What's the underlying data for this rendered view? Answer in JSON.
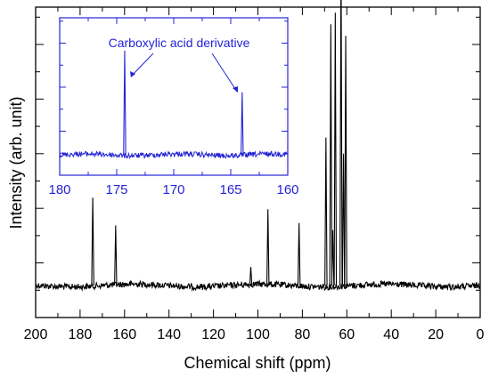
{
  "chart_data": [
    {
      "type": "line",
      "xlabel": "Chemical shift (ppm)",
      "ylabel": "Intensity (arb. unit)",
      "xlim": [
        200,
        0
      ],
      "x_reversed": true,
      "x_ticks": [
        200,
        180,
        160,
        140,
        120,
        100,
        80,
        60,
        40,
        20,
        0
      ],
      "tick_labels": [
        "200",
        "180",
        "160",
        "140",
        "120",
        "100",
        "80",
        "60",
        "40",
        "20",
        "0"
      ],
      "y_tick_labels": false,
      "baseline_intensity": 0,
      "line_color": "#000000",
      "series": [
        {
          "x": [
            174.3,
            164.0,
            103.2,
            95.5,
            81.5,
            69.4,
            67.2,
            66.3,
            65.2,
            62.6,
            61.5,
            60.5
          ],
          "values": [
            0.38,
            0.26,
            0.08,
            0.33,
            0.27,
            0.64,
            1.13,
            0.24,
            1.18,
            1.45,
            0.57,
            1.08
          ]
        }
      ]
    },
    {
      "type": "line",
      "inset": true,
      "xlim": [
        180,
        160
      ],
      "x_reversed": true,
      "x_ticks": [
        180,
        175,
        170,
        165,
        160
      ],
      "tick_labels": [
        "180",
        "175",
        "170",
        "165",
        "160"
      ],
      "line_color": "#2424d4",
      "annotation": "Carboxylic acid derivative",
      "series": [
        {
          "x": [
            174.3,
            164.0
          ],
          "values": [
            1.0,
            0.6
          ]
        }
      ]
    }
  ]
}
